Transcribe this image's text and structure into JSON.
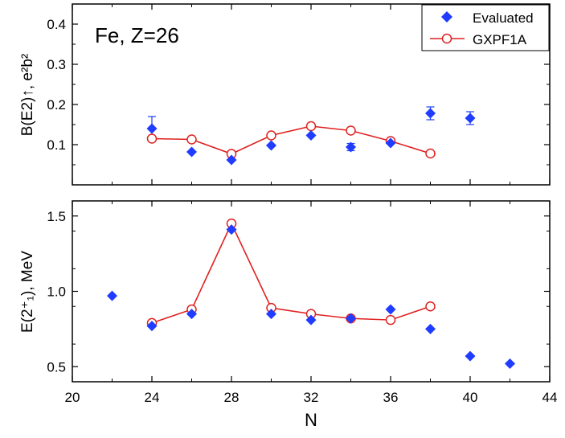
{
  "chart_data": [
    {
      "type": "scatter",
      "panel": "top",
      "annotation": "Fe, Z=26",
      "ylabel": "B(E2)↑, e²b²",
      "xlabel": "N",
      "xlim": [
        20,
        44
      ],
      "ylim": [
        0.0,
        0.45
      ],
      "yticks": [
        "0.1",
        "0.2",
        "0.3",
        "0.4"
      ],
      "legend": {
        "position": "top-right",
        "entries": [
          "Evaluated",
          "GXPF1A"
        ]
      },
      "series": [
        {
          "name": "Evaluated",
          "marker": "diamond",
          "color": "#1f3cff",
          "points": [
            {
              "x": 24,
              "y": 0.14,
              "err": 0.03
            },
            {
              "x": 26,
              "y": 0.082,
              "err": 0.0
            },
            {
              "x": 28,
              "y": 0.062,
              "err": 0.0
            },
            {
              "x": 30,
              "y": 0.098,
              "err": 0.0
            },
            {
              "x": 32,
              "y": 0.123,
              "err": 0.0
            },
            {
              "x": 34,
              "y": 0.094,
              "err": 0.009
            },
            {
              "x": 36,
              "y": 0.104,
              "err": 0.0
            },
            {
              "x": 38,
              "y": 0.178,
              "err": 0.016
            },
            {
              "x": 40,
              "y": 0.166,
              "err": 0.016
            }
          ]
        },
        {
          "name": "GXPF1A",
          "marker": "open-circle-line",
          "color": "#e02020",
          "points": [
            {
              "x": 24,
              "y": 0.115
            },
            {
              "x": 26,
              "y": 0.113
            },
            {
              "x": 28,
              "y": 0.077
            },
            {
              "x": 30,
              "y": 0.123
            },
            {
              "x": 32,
              "y": 0.146
            },
            {
              "x": 34,
              "y": 0.135
            },
            {
              "x": 36,
              "y": 0.109
            },
            {
              "x": 38,
              "y": 0.078
            }
          ]
        }
      ]
    },
    {
      "type": "scatter",
      "panel": "bottom",
      "ylabel": "E(2⁺₁), MeV",
      "xlabel": "N",
      "xlim": [
        20,
        44
      ],
      "ylim": [
        0.4,
        1.6
      ],
      "xticks": [
        "20",
        "24",
        "28",
        "32",
        "36",
        "40",
        "44"
      ],
      "yticks": [
        "0.5",
        "1.0",
        "1.5"
      ],
      "series": [
        {
          "name": "Evaluated",
          "marker": "diamond",
          "color": "#1f3cff",
          "points": [
            {
              "x": 22,
              "y": 0.97
            },
            {
              "x": 24,
              "y": 0.77
            },
            {
              "x": 26,
              "y": 0.85
            },
            {
              "x": 28,
              "y": 1.41
            },
            {
              "x": 30,
              "y": 0.85
            },
            {
              "x": 32,
              "y": 0.81
            },
            {
              "x": 34,
              "y": 0.82
            },
            {
              "x": 36,
              "y": 0.88
            },
            {
              "x": 38,
              "y": 0.75
            },
            {
              "x": 40,
              "y": 0.57
            },
            {
              "x": 42,
              "y": 0.52
            }
          ]
        },
        {
          "name": "GXPF1A",
          "marker": "open-circle-line",
          "color": "#e02020",
          "points": [
            {
              "x": 24,
              "y": 0.79
            },
            {
              "x": 26,
              "y": 0.88
            },
            {
              "x": 28,
              "y": 1.45
            },
            {
              "x": 30,
              "y": 0.89
            },
            {
              "x": 32,
              "y": 0.85
            },
            {
              "x": 34,
              "y": 0.82
            },
            {
              "x": 36,
              "y": 0.81
            },
            {
              "x": 38,
              "y": 0.9
            }
          ]
        }
      ]
    }
  ]
}
